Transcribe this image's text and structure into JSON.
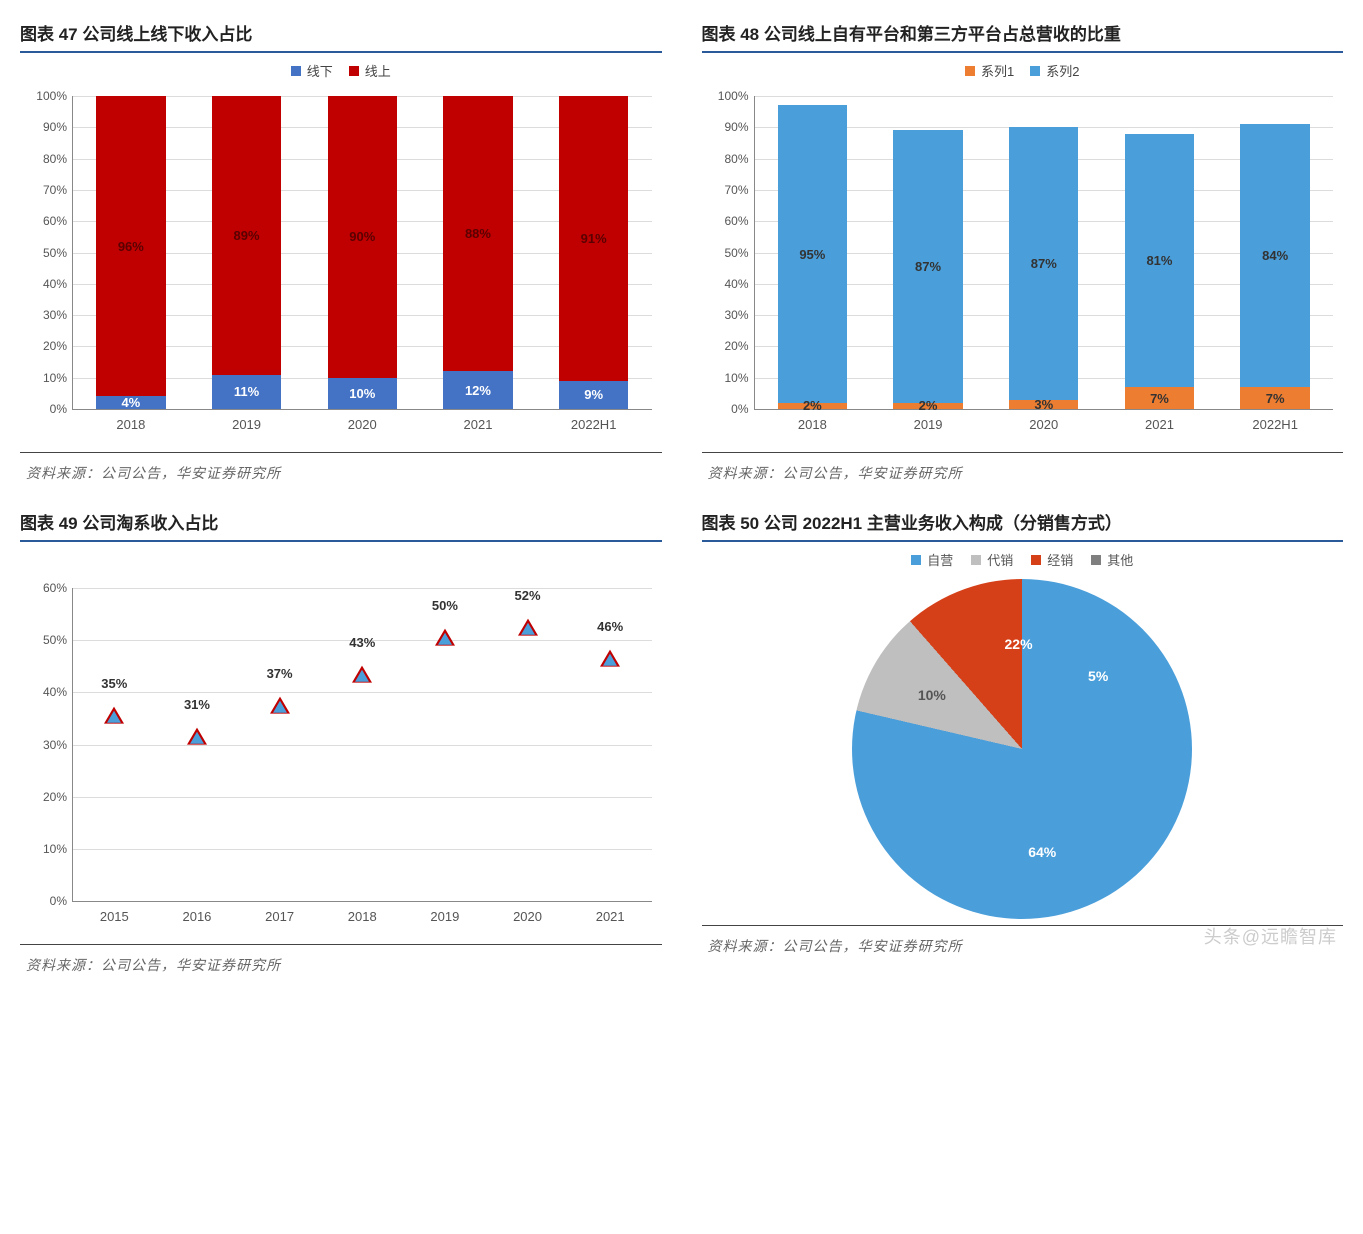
{
  "watermark": "头条@远瞻智库",
  "chart47": {
    "title": "图表 47 公司线上线下收入占比",
    "type": "stacked-bar-100",
    "legend": [
      {
        "label": "线下",
        "color": "#4472c4"
      },
      {
        "label": "线上",
        "color": "#c00000"
      }
    ],
    "categories": [
      "2018",
      "2019",
      "2020",
      "2021",
      "2022H1"
    ],
    "series": {
      "lower": {
        "name": "线下",
        "color": "#4472c4",
        "values": [
          4,
          11,
          10,
          12,
          9
        ],
        "labels": [
          "4%",
          "11%",
          "10%",
          "12%",
          "9%"
        ]
      },
      "upper": {
        "name": "线上",
        "color": "#c00000",
        "values": [
          96,
          89,
          90,
          88,
          91
        ],
        "labels": [
          "96%",
          "89%",
          "90%",
          "88%",
          "91%"
        ]
      }
    },
    "ylim": [
      0,
      100
    ],
    "ytick_step": 10,
    "ytick_suffix": "%",
    "label_color_lower": "#ffffff",
    "label_color_upper": "#5a0000",
    "grid_color": "#dcdcdc",
    "axis_color": "#888888",
    "label_fontsize": 13,
    "title_fontsize": 17,
    "source": "资料来源：公司公告，华安证券研究所"
  },
  "chart48": {
    "title": "图表 48 公司线上自有平台和第三方平台占总营收的比重",
    "type": "stacked-bar-100",
    "legend": [
      {
        "label": "系列1",
        "color": "#ed7d31"
      },
      {
        "label": "系列2",
        "color": "#4a9eda"
      }
    ],
    "categories": [
      "2018",
      "2019",
      "2020",
      "2021",
      "2022H1"
    ],
    "series": {
      "lower": {
        "name": "系列1",
        "color": "#ed7d31",
        "values": [
          2,
          2,
          3,
          7,
          7
        ],
        "labels": [
          "2%",
          "2%",
          "3%",
          "7%",
          "7%"
        ]
      },
      "upper": {
        "name": "系列2",
        "color": "#4a9eda",
        "values": [
          95,
          87,
          87,
          81,
          84
        ],
        "labels": [
          "95%",
          "87%",
          "87%",
          "81%",
          "84%"
        ]
      }
    },
    "ylim": [
      0,
      100
    ],
    "ytick_step": 10,
    "ytick_suffix": "%",
    "label_color_lower": "#333333",
    "label_color_upper": "#333333",
    "grid_color": "#dcdcdc",
    "axis_color": "#888888",
    "label_fontsize": 13,
    "title_fontsize": 17,
    "source": "资料来源：公司公告，华安证券研究所"
  },
  "chart49": {
    "title": "图表 49 公司淘系收入占比",
    "type": "scatter-triangle",
    "categories": [
      "2015",
      "2016",
      "2017",
      "2018",
      "2019",
      "2020",
      "2021"
    ],
    "values": [
      35,
      31,
      37,
      43,
      50,
      52,
      46
    ],
    "labels": [
      "35%",
      "31%",
      "37%",
      "43%",
      "50%",
      "52%",
      "46%"
    ],
    "marker_fill": "#4a9eda",
    "marker_border": "#c00000",
    "marker_style": "triangle-up",
    "ylim": [
      0,
      60
    ],
    "ytick_step": 10,
    "ytick_suffix": "%",
    "grid_color": "#dcdcdc",
    "axis_color": "#888888",
    "label_fontsize": 13,
    "title_fontsize": 17,
    "source": "资料来源：公司公告，华安证券研究所"
  },
  "chart50": {
    "title": "图表 50 公司 2022H1 主营业务收入构成（分销售方式）",
    "type": "pie",
    "legend": [
      {
        "label": "自营",
        "color": "#4a9eda"
      },
      {
        "label": "代销",
        "color": "#bfbfbf"
      },
      {
        "label": "经销",
        "color": "#d64018"
      },
      {
        "label": "其他",
        "color": "#7f7f7f"
      }
    ],
    "slices": [
      {
        "name": "自营",
        "value": 64,
        "label": "64%",
        "color": "#4a9eda"
      },
      {
        "name": "代销",
        "value": 10,
        "label": "10%",
        "color": "#bfbfbf"
      },
      {
        "name": "经销",
        "value": 22,
        "label": "22%",
        "color": "#d64018"
      },
      {
        "name": "其他",
        "value": 5,
        "label": "5%",
        "color": "#7f7f7f"
      }
    ],
    "start_angle_deg": 55,
    "label_fontsize": 14,
    "title_fontsize": 17,
    "source": "资料来源：公司公告，华安证券研究所"
  }
}
